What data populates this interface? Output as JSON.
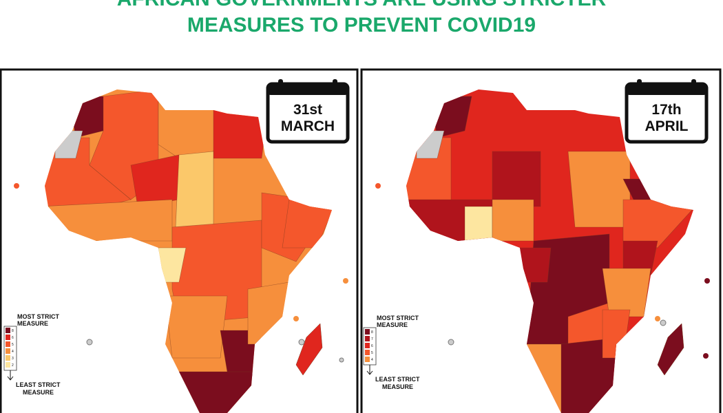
{
  "title_lines": [
    "AFRICAN GOVERNMENTS ARE USING STRICTER",
    "MEASURES TO PREVENT COVID19"
  ],
  "panels": [
    {
      "date": [
        "31st",
        "MARCH"
      ],
      "legend": {
        "most": [
          "MOST STRICT",
          "MEASURE"
        ],
        "least": [
          "LEAST STRICT",
          "MEASURE"
        ],
        "levels": [
          {
            "label": 8,
            "color": "#7b0d1e"
          },
          {
            "label": 6,
            "color": "#e0261e"
          },
          {
            "label": 5,
            "color": "#f4572c"
          },
          {
            "label": 4,
            "color": "#f68f3c"
          },
          {
            "label": 3,
            "color": "#fbc86a"
          },
          {
            "label": 2,
            "color": "#fde6a0"
          }
        ]
      }
    },
    {
      "date": [
        "17th",
        "APRIL"
      ],
      "legend": {
        "most": [
          "MOST STRICT",
          "MEASURE"
        ],
        "least": [
          "LEAST STRICT",
          "MEASURE"
        ],
        "levels": [
          {
            "label": 8,
            "color": "#7b0d1e"
          },
          {
            "label": 7,
            "color": "#b0141c"
          },
          {
            "label": 6,
            "color": "#e0261e"
          },
          {
            "label": 5,
            "color": "#f4572c"
          },
          {
            "label": 4,
            "color": "#f68f3c"
          }
        ]
      }
    }
  ]
}
